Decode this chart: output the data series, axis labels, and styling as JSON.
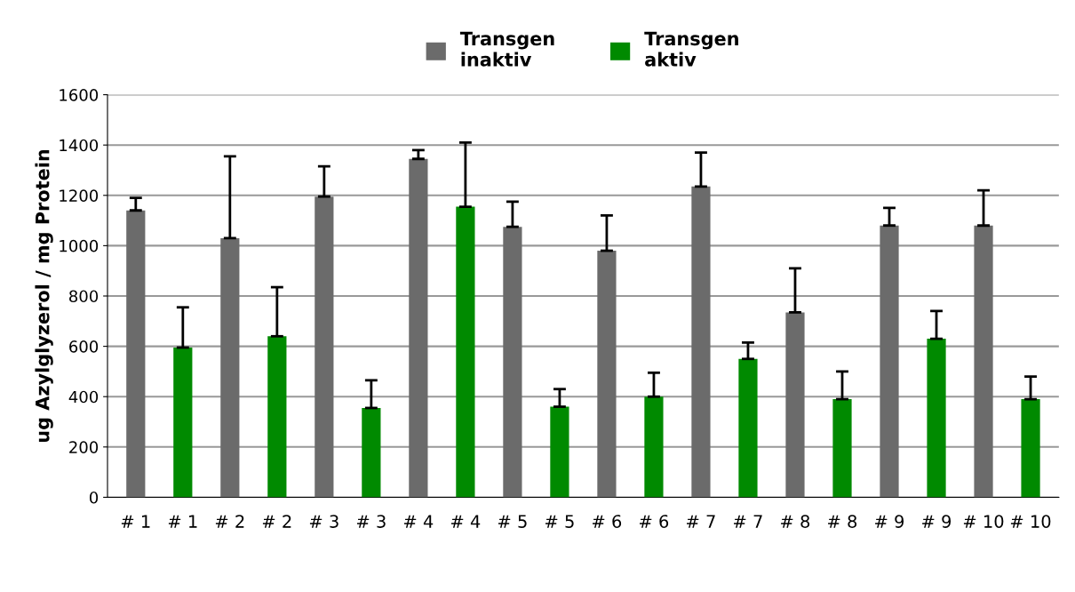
{
  "chart_data": {
    "type": "bar",
    "ylabel": "ug Azylglyzerol / mg Protein",
    "categories": [
      "# 1",
      "# 1",
      "# 2",
      "# 2",
      "# 3",
      "# 3",
      "# 4",
      "# 4",
      "# 5",
      "# 5",
      "# 6",
      "# 6",
      "# 7",
      "# 7",
      "# 8",
      "# 8",
      "# 9",
      "# 9",
      "# 10",
      "# 10"
    ],
    "series": [
      {
        "name": "Transgen\ninaktiv",
        "color": "#6b6b6b",
        "values": [
          1140,
          null,
          1030,
          null,
          1195,
          null,
          1345,
          null,
          1075,
          null,
          980,
          null,
          1235,
          null,
          735,
          null,
          1080,
          null,
          1080,
          null
        ],
        "errors": [
          [
            1140,
            1190
          ],
          null,
          [
            1030,
            1355
          ],
          null,
          [
            1195,
            1315
          ],
          null,
          [
            1345,
            1380
          ],
          null,
          [
            1075,
            1175
          ],
          null,
          [
            980,
            1120
          ],
          null,
          [
            1235,
            1370
          ],
          null,
          [
            735,
            910
          ],
          null,
          [
            1080,
            1150
          ],
          null,
          [
            1080,
            1220
          ],
          null
        ]
      },
      {
        "name": "Transgen\naktiv",
        "color": "#008a00",
        "values": [
          null,
          595,
          null,
          640,
          null,
          355,
          null,
          1155,
          null,
          360,
          null,
          400,
          null,
          550,
          null,
          390,
          null,
          630,
          null,
          390
        ],
        "errors": [
          null,
          [
            595,
            755
          ],
          null,
          [
            640,
            835
          ],
          null,
          [
            355,
            465
          ],
          null,
          [
            1155,
            1410
          ],
          null,
          [
            360,
            430
          ],
          null,
          [
            400,
            495
          ],
          null,
          [
            550,
            615
          ],
          null,
          [
            390,
            500
          ],
          null,
          [
            630,
            740
          ],
          null,
          [
            390,
            480
          ]
        ]
      }
    ],
    "ylim": [
      0,
      1600
    ],
    "yticks": [
      0,
      200,
      400,
      600,
      800,
      1000,
      1200,
      1400,
      1600
    ],
    "grid": "y",
    "legend": "top"
  }
}
